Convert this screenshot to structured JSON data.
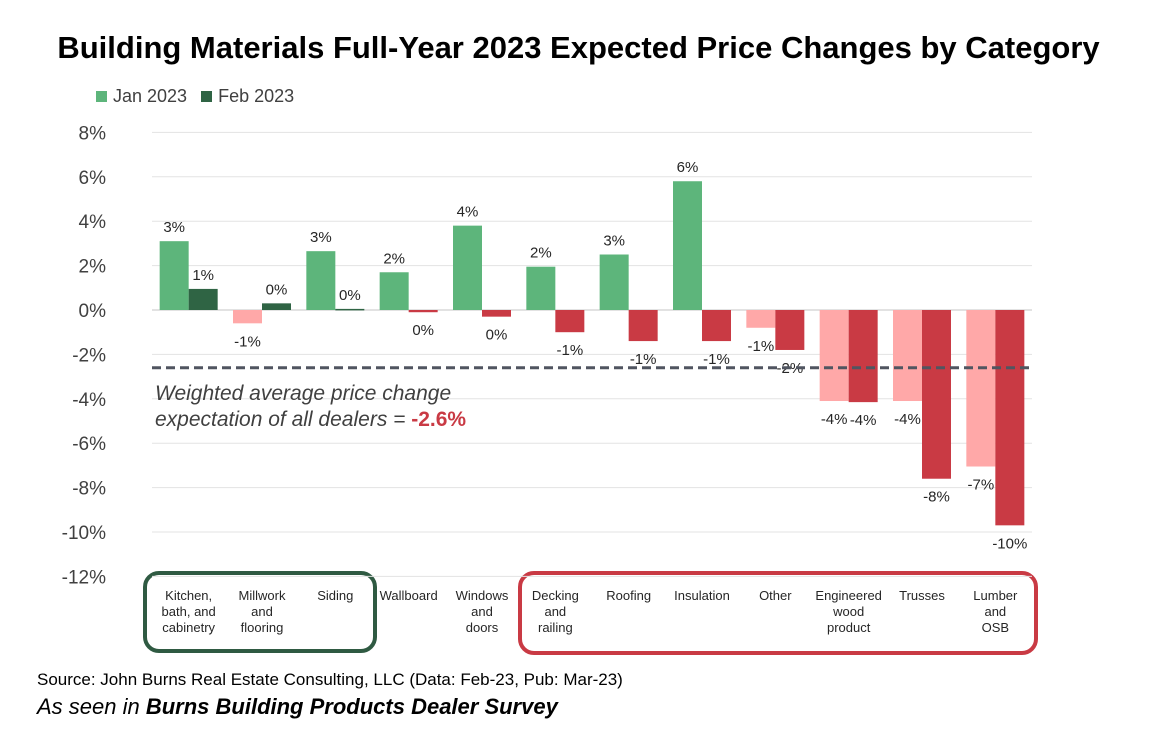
{
  "title": "Building Materials Full-Year 2023 Expected Price Changes by Category",
  "colors": {
    "jan_positive": "#5db57b",
    "feb_positive": "#2f6444",
    "jan_negative": "#ffa8a8",
    "feb_negative": "#c93a44",
    "average_line": "#505560",
    "highlight_text": "#c93a44",
    "green_group_box": "#2f5a42",
    "red_group_box": "#c93a44"
  },
  "chart_data": {
    "type": "bar",
    "title": "Building Materials Full-Year 2023 Expected Price Changes by Category",
    "categories": [
      "Kitchen, bath, and cabinetry",
      "Millwork and flooring",
      "Siding",
      "Wallboard",
      "Windows and doors",
      "Decking and railing",
      "Roofing",
      "Insulation",
      "Other",
      "Engineered wood product",
      "Trusses",
      "Lumber and OSB"
    ],
    "category_lines": [
      [
        "Kitchen,",
        "bath, and",
        "cabinetry"
      ],
      [
        "Millwork",
        "and",
        "flooring"
      ],
      [
        "Siding"
      ],
      [
        "Wallboard"
      ],
      [
        "Windows",
        "and",
        "doors"
      ],
      [
        "Decking",
        "and",
        "railing"
      ],
      [
        "Roofing"
      ],
      [
        "Insulation"
      ],
      [
        "Other"
      ],
      [
        "Engineered",
        "wood",
        "product"
      ],
      [
        "Trusses"
      ],
      [
        "Lumber",
        "and",
        "OSB"
      ]
    ],
    "series": [
      {
        "name": "Jan 2023",
        "values": [
          3.1,
          -0.6,
          2.65,
          1.7,
          3.8,
          1.95,
          2.5,
          5.8,
          -0.8,
          -4.1,
          -4.1,
          -7.05
        ],
        "labels": [
          "3%",
          "-1%",
          "3%",
          "2%",
          "4%",
          "2%",
          "3%",
          "6%",
          "-1%",
          "-4%",
          "-4%",
          "-7%"
        ]
      },
      {
        "name": "Feb 2023",
        "values": [
          0.95,
          0.3,
          0.05,
          -0.1,
          -0.3,
          -1.0,
          -1.4,
          -1.4,
          -1.8,
          -4.15,
          -7.6,
          -9.7
        ],
        "labels": [
          "1%",
          "0%",
          "0%",
          "0%",
          "0%",
          "-1%",
          "-1%",
          "-1%",
          "-2%",
          "-4%",
          "-8%",
          "-10%"
        ]
      }
    ],
    "ylim": [
      -12,
      8
    ],
    "yticks": [
      8,
      6,
      4,
      2,
      0,
      -2,
      -4,
      -6,
      -8,
      -10,
      -12
    ],
    "ytick_labels": [
      "8%",
      "6%",
      "4%",
      "2%",
      "0%",
      "-2%",
      "-4%",
      "-6%",
      "-8%",
      "-10%",
      "-12%"
    ],
    "grid": true,
    "legend": "top-left",
    "reference_line": {
      "value": -2.6,
      "style": "dashed"
    },
    "annotation": {
      "text": "Weighted average price change",
      "text2": "expectation of all dealers = ",
      "value": "-2.6%"
    },
    "groups": [
      {
        "color": "green",
        "categories": [
          "Kitchen, bath, and cabinetry",
          "Millwork and flooring",
          "Siding"
        ]
      },
      {
        "color": "red",
        "categories": [
          "Decking and railing",
          "Roofing",
          "Insulation",
          "Other",
          "Engineered wood product",
          "Trusses",
          "Lumber and OSB"
        ]
      }
    ]
  },
  "source": "Source: John Burns Real Estate Consulting, LLC (Data: Feb-23, Pub: Mar-23)",
  "seen_in_prefix": "As seen in ",
  "seen_in_name": "Burns Building Products Dealer Survey"
}
